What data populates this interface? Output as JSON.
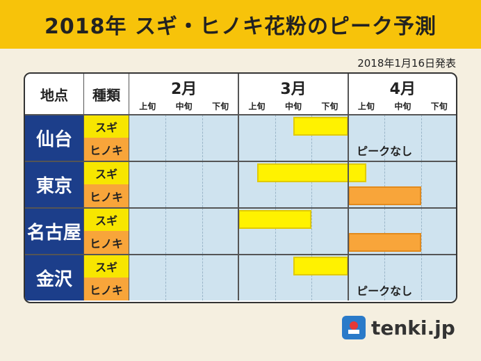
{
  "title": "2018年 スギ・ヒノキ花粉のピーク予測",
  "published": "2018年1月16日発表",
  "header": {
    "location": "地点",
    "type": "種類"
  },
  "months": [
    "2月",
    "3月",
    "4月"
  ],
  "periods": [
    "上旬",
    "中旬",
    "下旬"
  ],
  "colors": {
    "sugi": "#fff200",
    "hinoki": "#f8a53a",
    "city_bg": "#1c3e8a",
    "title_bar": "#f7c30a",
    "plot_bg": "#cfe3ef"
  },
  "chart_data": {
    "type": "table",
    "title": "2018年 スギ・ヒノキ花粉のピーク予測",
    "columns": [
      "2月上旬",
      "2月中旬",
      "2月下旬",
      "3月上旬",
      "3月中旬",
      "3月下旬",
      "4月上旬",
      "4月中旬",
      "4月下旬"
    ],
    "rows": [
      {
        "city": "仙台",
        "sugi_label": "スギ",
        "hinoki_label": "ヒノキ",
        "sugi": {
          "start": 4.5,
          "end": 6.0
        },
        "hinoki": null,
        "hinoki_note": "ピークなし"
      },
      {
        "city": "東京",
        "sugi_label": "スギ",
        "hinoki_label": "ヒノキ",
        "sugi": {
          "start": 3.5,
          "end": 6.5
        },
        "hinoki": {
          "start": 6.0,
          "end": 8.0
        }
      },
      {
        "city": "名古屋",
        "sugi_label": "スギ",
        "hinoki_label": "ヒノキ",
        "sugi": {
          "start": 3.0,
          "end": 5.0
        },
        "hinoki": {
          "start": 6.0,
          "end": 8.0
        }
      },
      {
        "city": "金沢",
        "sugi_label": "スギ",
        "hinoki_label": "ヒノキ",
        "sugi": {
          "start": 4.5,
          "end": 6.0
        },
        "hinoki": null,
        "hinoki_note": "ピークなし"
      }
    ]
  },
  "brand": "tenki.jp"
}
